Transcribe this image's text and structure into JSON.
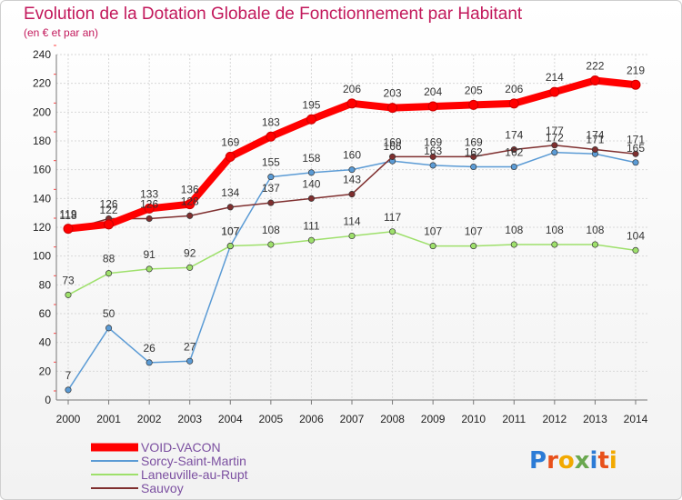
{
  "chart_data": {
    "type": "line",
    "title": "Evolution de la Dotation Globale de Fonctionnement par Habitant",
    "subtitle": "(en € et par an)",
    "xlabel": "",
    "ylabel": "",
    "ylim": [
      0,
      240
    ],
    "yticks": [
      0,
      20,
      40,
      60,
      80,
      100,
      120,
      140,
      160,
      180,
      200,
      220,
      240
    ],
    "grid": true,
    "legend_position": "bottom-left",
    "categories": [
      "2000",
      "2001",
      "2002",
      "2003",
      "2004",
      "2005",
      "2006",
      "2007",
      "2008",
      "2009",
      "2010",
      "2011",
      "2012",
      "2013",
      "2014"
    ],
    "series": [
      {
        "name": "Sorcy-Saint-Martin",
        "color": "#5b9bd5",
        "values": [
          7,
          50,
          26,
          27,
          107,
          155,
          158,
          160,
          166,
          163,
          162,
          162,
          172,
          171,
          165
        ]
      },
      {
        "name": "Laneuville-au-Rupt",
        "color": "#9ee06b",
        "values": [
          73,
          88,
          91,
          92,
          107,
          108,
          111,
          114,
          117,
          107,
          107,
          108,
          108,
          108,
          104
        ]
      },
      {
        "name": "Sauvoy",
        "color": "#7f2f2f",
        "values": [
          118,
          126,
          126,
          128,
          134,
          137,
          140,
          143,
          169,
          169,
          169,
          174,
          177,
          174,
          171
        ]
      },
      {
        "name": "VOID-VACON",
        "color": "#ff0000",
        "values": [
          119,
          122,
          133,
          136,
          169,
          183,
          195,
          206,
          203,
          204,
          205,
          206,
          214,
          222,
          219
        ]
      }
    ]
  },
  "brand": {
    "logo_text": "Proxiti"
  }
}
